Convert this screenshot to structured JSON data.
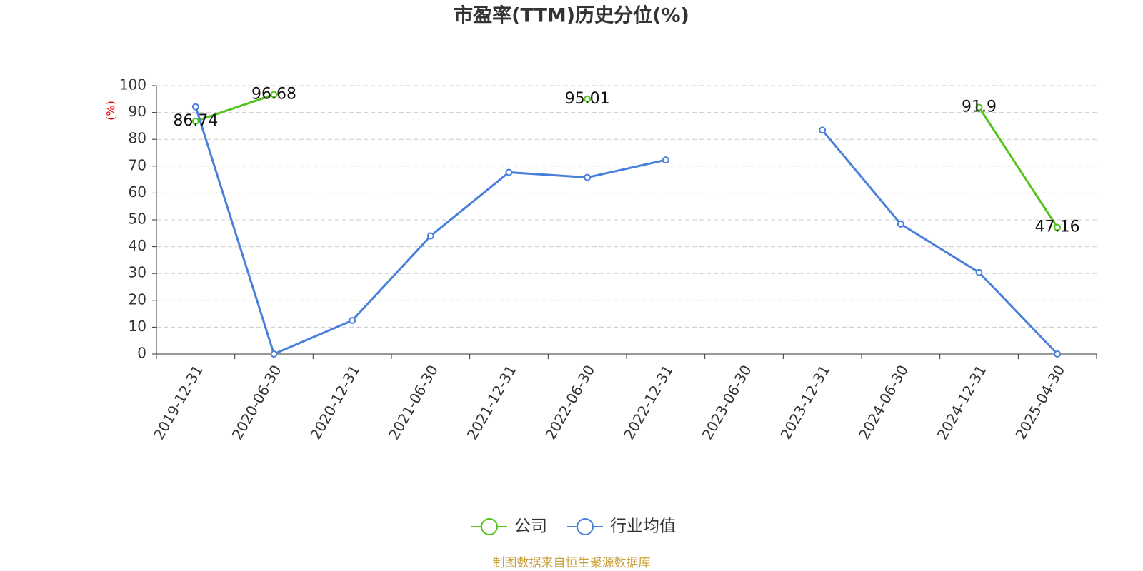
{
  "chart_data": {
    "type": "line",
    "title": "市盈率(TTM)历史分位(%)",
    "y_label": "(%)",
    "source": "制图数据来自恒生聚源数据库",
    "categories": [
      "2019-12-31",
      "2020-06-30",
      "2020-12-31",
      "2021-06-30",
      "2021-12-31",
      "2022-06-30",
      "2022-12-31",
      "2023-06-30",
      "2023-12-31",
      "2024-06-30",
      "2024-12-31",
      "2025-04-30"
    ],
    "series": [
      {
        "name": "公司",
        "color": "#52c41a",
        "values": [
          86.74,
          96.68,
          null,
          null,
          null,
          95.01,
          null,
          null,
          null,
          null,
          91.9,
          47.16
        ]
      },
      {
        "name": "行业均值",
        "color": "#4a7fdc",
        "values": [
          92.1,
          0,
          12.5,
          44,
          67.7,
          65.8,
          72.3,
          null,
          83.4,
          48.4,
          30.4,
          0
        ]
      }
    ],
    "ylim": [
      0,
      100
    ],
    "yticks": [
      0,
      10,
      20,
      30,
      40,
      50,
      60,
      70,
      80,
      90,
      100
    ],
    "grid": true,
    "data_labels_series": [
      0
    ]
  }
}
